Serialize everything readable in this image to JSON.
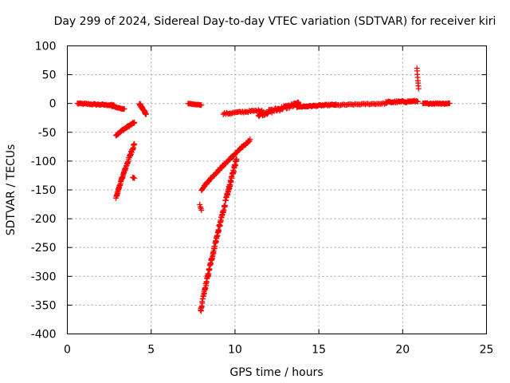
{
  "chart_data": {
    "type": "scatter",
    "title": "Day 299 of 2024, Sidereal Day-to-day VTEC variation (SDTVAR) for receiver kiri",
    "xlabel": "GPS time / hours",
    "ylabel": "SDTVAR / TECUs",
    "xlim": [
      0,
      25
    ],
    "ylim": [
      -400,
      100
    ],
    "xticks": [
      0,
      5,
      10,
      15,
      20,
      25
    ],
    "yticks": [
      100,
      50,
      0,
      -50,
      -100,
      -150,
      -200,
      -250,
      -300,
      -350,
      -400
    ],
    "grid": true,
    "marker": "+",
    "color": "#ff0000",
    "series": [
      {
        "name": "SDTVAR",
        "segments": [
          {
            "x0": 0.6,
            "x1": 2.8,
            "y0": 0,
            "y1": -3,
            "n": 40,
            "jitter": 2
          },
          {
            "x0": 2.5,
            "x1": 3.4,
            "y0": -3,
            "y1": -10,
            "n": 18,
            "jitter": 2
          },
          {
            "x0": 2.9,
            "x1": 4.0,
            "y0": -55,
            "y1": -33,
            "n": 40,
            "jitter": 3
          },
          {
            "x0": 2.9,
            "x1": 4.0,
            "y0": -165,
            "y1": -70,
            "n": 70,
            "jitter": 5
          },
          {
            "x0": 3.9,
            "x1": 4.0,
            "y0": -128,
            "y1": -130,
            "n": 3,
            "jitter": 1
          },
          {
            "x0": 4.3,
            "x1": 4.7,
            "y0": 0,
            "y1": -18,
            "n": 25,
            "jitter": 4
          },
          {
            "x0": 7.2,
            "x1": 8.0,
            "y0": 0,
            "y1": -3,
            "n": 15,
            "jitter": 1
          },
          {
            "x0": 7.9,
            "x1": 8.0,
            "y0": -175,
            "y1": -185,
            "n": 4,
            "jitter": 2
          },
          {
            "x0": 7.95,
            "x1": 10.1,
            "y0": -362,
            "y1": -95,
            "n": 150,
            "jitter": 8
          },
          {
            "x0": 8.0,
            "x1": 10.9,
            "y0": -150,
            "y1": -63,
            "n": 90,
            "jitter": 3
          },
          {
            "x0": 9.3,
            "x1": 11.6,
            "y0": -18,
            "y1": -12,
            "n": 35,
            "jitter": 3
          },
          {
            "x0": 11.4,
            "x1": 13.9,
            "y0": -20,
            "y1": 0,
            "n": 70,
            "jitter": 7
          },
          {
            "x0": 13.7,
            "x1": 16.0,
            "y0": -6,
            "y1": -2,
            "n": 45,
            "jitter": 2
          },
          {
            "x0": 16.0,
            "x1": 19.0,
            "y0": -3,
            "y1": 0,
            "n": 40,
            "jitter": 2
          },
          {
            "x0": 19.0,
            "x1": 20.9,
            "y0": 2,
            "y1": 4,
            "n": 40,
            "jitter": 3
          },
          {
            "x0": 20.85,
            "x1": 20.95,
            "y0": 62,
            "y1": 25,
            "n": 8,
            "jitter": 2
          },
          {
            "x0": 21.2,
            "x1": 22.8,
            "y0": 0,
            "y1": 0,
            "n": 30,
            "jitter": 2
          }
        ]
      }
    ]
  }
}
